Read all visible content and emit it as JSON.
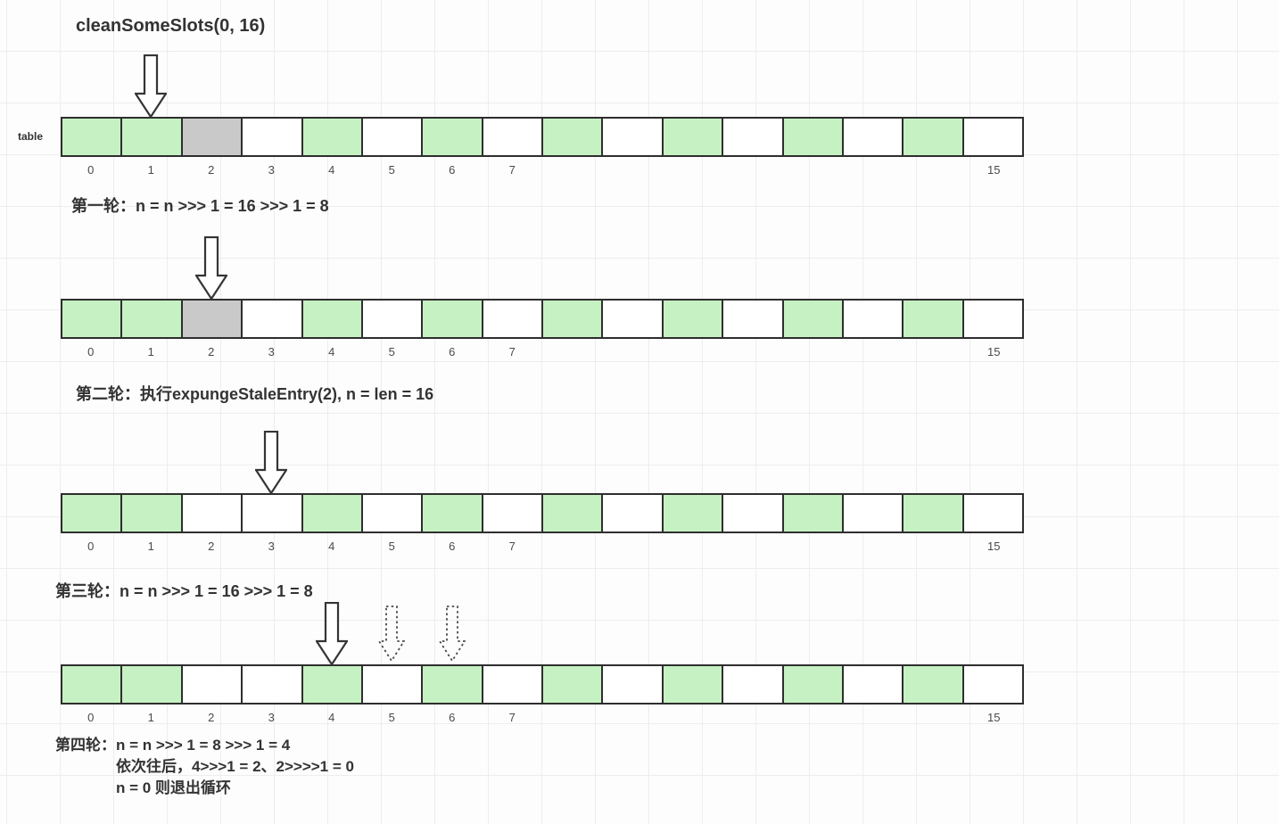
{
  "title": "cleanSomeSlots(0, 16)",
  "table_label": "table",
  "colors": {
    "green": "#c6f1c2",
    "gray": "#c9c9c9",
    "white": "#ffffff",
    "border": "#2e2e2e",
    "text": "#333333"
  },
  "arrays": [
    {
      "name": "state-initial",
      "cells": [
        "green",
        "green",
        "gray",
        "white",
        "green",
        "white",
        "green",
        "white",
        "green",
        "white",
        "green",
        "white",
        "green",
        "white",
        "green",
        "white"
      ],
      "index_labels": [
        "0",
        "1",
        "2",
        "3",
        "4",
        "5",
        "6",
        "7",
        "",
        "",
        "",
        "",
        "",
        "",
        "",
        "15"
      ],
      "arrows": [
        {
          "cell": 1,
          "style": "solid"
        }
      ]
    },
    {
      "name": "state-round-1",
      "cells": [
        "green",
        "green",
        "gray",
        "white",
        "green",
        "white",
        "green",
        "white",
        "green",
        "white",
        "green",
        "white",
        "green",
        "white",
        "green",
        "white"
      ],
      "index_labels": [
        "0",
        "1",
        "2",
        "3",
        "4",
        "5",
        "6",
        "7",
        "",
        "",
        "",
        "",
        "",
        "",
        "",
        "15"
      ],
      "arrows": [
        {
          "cell": 2,
          "style": "solid"
        }
      ]
    },
    {
      "name": "state-round-2",
      "cells": [
        "green",
        "green",
        "white",
        "white",
        "green",
        "white",
        "green",
        "white",
        "green",
        "white",
        "green",
        "white",
        "green",
        "white",
        "green",
        "white"
      ],
      "index_labels": [
        "0",
        "1",
        "2",
        "3",
        "4",
        "5",
        "6",
        "7",
        "",
        "",
        "",
        "",
        "",
        "",
        "",
        "15"
      ],
      "arrows": [
        {
          "cell": 3,
          "style": "solid"
        }
      ]
    },
    {
      "name": "state-round-3",
      "cells": [
        "green",
        "green",
        "white",
        "white",
        "green",
        "white",
        "green",
        "white",
        "green",
        "white",
        "green",
        "white",
        "green",
        "white",
        "green",
        "white"
      ],
      "index_labels": [
        "0",
        "1",
        "2",
        "3",
        "4",
        "5",
        "6",
        "7",
        "",
        "",
        "",
        "",
        "",
        "",
        "",
        "15"
      ],
      "arrows": [
        {
          "cell": 4,
          "style": "solid"
        },
        {
          "cell": 5,
          "style": "dotted"
        },
        {
          "cell": 6,
          "style": "dotted"
        }
      ]
    }
  ],
  "rounds": [
    {
      "label": "第一轮：",
      "text": "n = n >>> 1 = 16 >>>  1 = 8"
    },
    {
      "label": "第二轮：",
      "text": "执行expungeStaleEntry(2), n = len = 16"
    },
    {
      "label": "第三轮：",
      "text": "n = n >>> 1 = 16 >>> 1  = 8"
    },
    {
      "label": "第四轮：",
      "text": "n = n >>> 1 = 8 >>> 1 = 4",
      "extra_lines": [
        "依次往后，4>>>1 = 2、2>>>>1 = 0",
        "n = 0 则退出循环"
      ]
    }
  ]
}
